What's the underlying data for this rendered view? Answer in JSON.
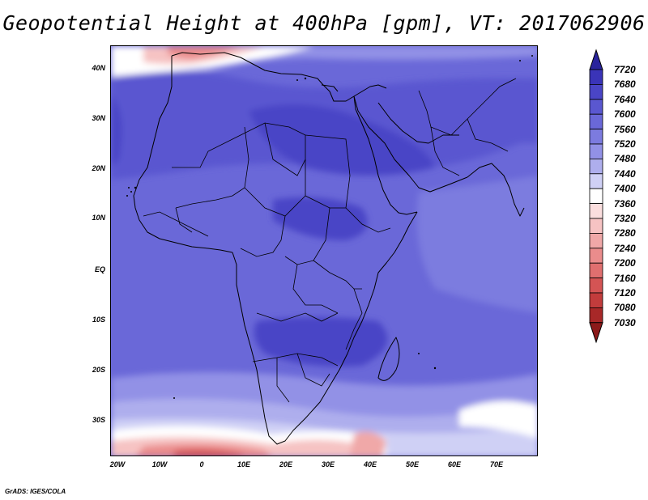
{
  "title": "Geopotential Height at 400hPa [gpm], VT: 2017062906",
  "footer": "GrADS: IGES/COLA",
  "map": {
    "projection": "latlon",
    "lon_range": [
      -22,
      80
    ],
    "lat_range": [
      -37,
      45
    ],
    "features": [
      "coastlines",
      "country borders"
    ],
    "lat_labels": [
      "40N",
      "30N",
      "20N",
      "10N",
      "EQ",
      "10S",
      "20S",
      "30S"
    ],
    "lon_labels": [
      "20W",
      "10W",
      "0",
      "10E",
      "20E",
      "30E",
      "40E",
      "50E",
      "60E",
      "70E"
    ]
  },
  "colorbar": {
    "levels": [
      "7720",
      "7680",
      "7640",
      "7600",
      "7560",
      "7520",
      "7480",
      "7440",
      "7400",
      "7360",
      "7320",
      "7280",
      "7240",
      "7200",
      "7160",
      "7120",
      "7080",
      "7030"
    ],
    "colors": [
      "#29239c",
      "#3a34b8",
      "#4a45c6",
      "#5a57d0",
      "#6a68d8",
      "#7c7bdf",
      "#9291e6",
      "#aeaeed",
      "#cfd0f5",
      "#ffffff",
      "#fbdede",
      "#f6c3c3",
      "#f0a8a8",
      "#ea8c8c",
      "#e06f6f",
      "#d45454",
      "#c23c3c",
      "#a82828",
      "#8c1a1a"
    ],
    "extend": "both"
  }
}
